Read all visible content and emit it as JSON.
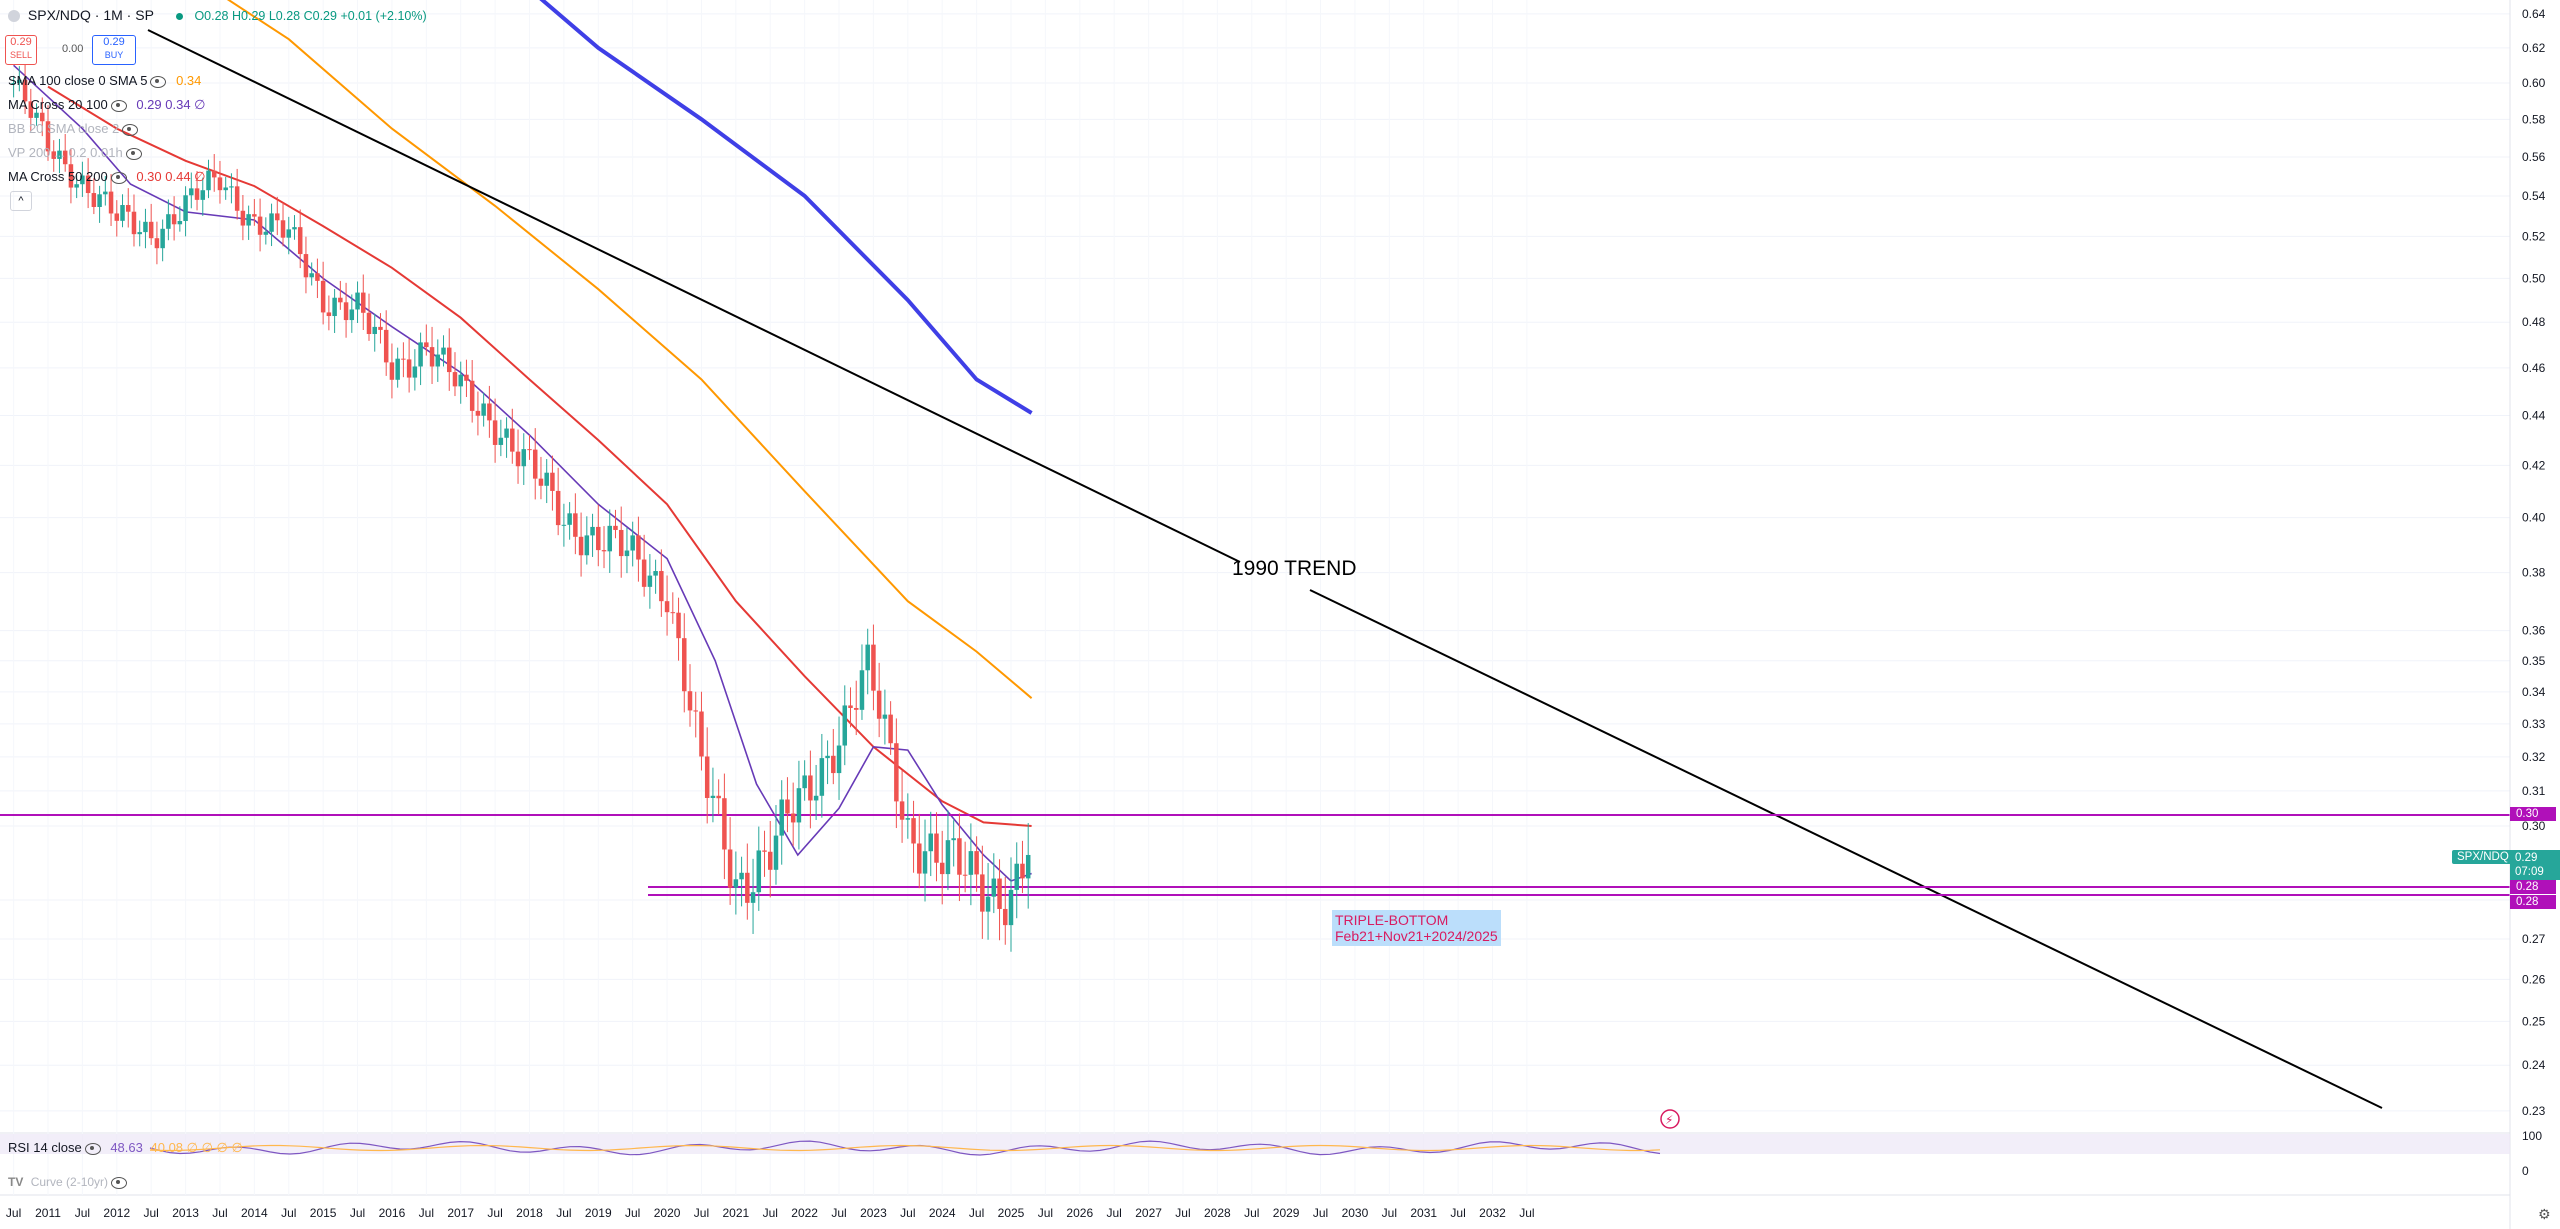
{
  "header": {
    "symbol": "SPX/NDQ · 1M · SP",
    "ohlc_open": "O0.28",
    "ohlc_high": "H0.29",
    "ohlc_low": "L0.28",
    "ohlc_close": "C0.29",
    "ohlc_change": "+0.01 (+2.10%)",
    "sell_price": "0.29",
    "sell_label": "SELL",
    "spread": "0.00",
    "buy_price": "0.29",
    "buy_label": "BUY"
  },
  "indicators": [
    {
      "label": "SMA 100 close 0 SMA 5",
      "values": "0.34",
      "color": "#ff9800"
    },
    {
      "label": "MA Cross 20 100",
      "values": "0.29 0.34 ∅",
      "color": "#673ab7"
    },
    {
      "label": "BB 20 SMA close 2",
      "values": "",
      "color": "#9598a1"
    },
    {
      "label": "VP 200 ... 0.2 0.01h",
      "values": "",
      "color": "#9598a1"
    },
    {
      "label": "MA Cross 50 200",
      "values": "0.30 0.44 ∅",
      "color": "#e53935"
    }
  ],
  "annotations": {
    "trend_label": "1990 TREND",
    "triple_bottom_title": "TRIPLE-BOTTOM",
    "triple_bottom_sub": "Feb21+Nov21+2024/2025"
  },
  "price_labels": {
    "current_symbol": "SPX/NDQ",
    "current_price": "0.29",
    "countdown": "07:09",
    "line_030": "0.30",
    "line_028a": "0.28",
    "line_028b": "0.28"
  },
  "rsi": {
    "label": "RSI 14 close",
    "value": "48.63",
    "extra": "40.08 ∅ ∅ ∅ ∅",
    "curve_label": "Curve (2-10yr)"
  },
  "colors": {
    "up": "#26a69a",
    "down": "#ef5350",
    "ma20": "#673ab7",
    "ma50": "#e53935",
    "sma100": "#ff9800",
    "ma200": "#3f3fe6",
    "hline": "#b010b9",
    "trend": "#000000"
  },
  "chart_data": {
    "type": "candlestick",
    "symbol": "SPX/NDQ",
    "interval": "1M",
    "y_ticks": [
      "0.64",
      "0.62",
      "0.60",
      "0.58",
      "0.56",
      "0.54",
      "0.52",
      "0.50",
      "0.48",
      "0.46",
      "0.44",
      "0.42",
      "0.40",
      "0.38",
      "0.36",
      "0.35",
      "0.34",
      "0.33",
      "0.32",
      "0.31",
      "0.30",
      "0.28",
      "0.27",
      "0.26",
      "0.25",
      "0.24",
      "0.23"
    ],
    "x_ticks": [
      "Jul",
      "2011",
      "Jul",
      "2012",
      "Jul",
      "2013",
      "Jul",
      "2014",
      "Jul",
      "2015",
      "Jul",
      "2016",
      "Jul",
      "2017",
      "Jul",
      "2018",
      "Jul",
      "2019",
      "Jul",
      "2020",
      "Jul",
      "2021",
      "Jul",
      "2022",
      "Jul",
      "2023",
      "Jul",
      "2024",
      "Jul",
      "2025",
      "Jul",
      "2026",
      "Jul",
      "2027",
      "Jul",
      "2028",
      "Jul",
      "2029",
      "Jul",
      "2030",
      "Jul",
      "2031",
      "Jul",
      "2032",
      "Jul"
    ],
    "rsi_ticks": [
      "100",
      "0"
    ],
    "series": [
      {
        "name": "SPX/NDQ close (approx)",
        "values": [
          [
            "2010-07",
            0.6
          ],
          [
            "2011-01",
            0.565
          ],
          [
            "2011-07",
            0.548
          ],
          [
            "2012-01",
            0.528
          ],
          [
            "2012-07",
            0.522
          ],
          [
            "2013-01",
            0.535
          ],
          [
            "2013-07",
            0.548
          ],
          [
            "2014-01",
            0.528
          ],
          [
            "2014-07",
            0.52
          ],
          [
            "2015-01",
            0.492
          ],
          [
            "2015-07",
            0.485
          ],
          [
            "2016-01",
            0.46
          ],
          [
            "2016-07",
            0.47
          ],
          [
            "2017-01",
            0.45
          ],
          [
            "2017-07",
            0.438
          ],
          [
            "2018-01",
            0.418
          ],
          [
            "2018-07",
            0.4
          ],
          [
            "2019-01",
            0.392
          ],
          [
            "2019-07",
            0.385
          ],
          [
            "2020-01",
            0.375
          ],
          [
            "2020-07",
            0.315
          ],
          [
            "2021-01",
            0.285
          ],
          [
            "2021-07",
            0.293
          ],
          [
            "2022-01",
            0.308
          ],
          [
            "2022-07",
            0.328
          ],
          [
            "2022-12",
            0.346
          ],
          [
            "2023-07",
            0.3
          ],
          [
            "2024-01",
            0.29
          ],
          [
            "2024-07",
            0.285
          ],
          [
            "2025-01",
            0.282
          ],
          [
            "2025-04",
            0.292
          ]
        ]
      }
    ],
    "horizontal_lines": [
      0.3,
      0.28,
      0.28
    ]
  }
}
